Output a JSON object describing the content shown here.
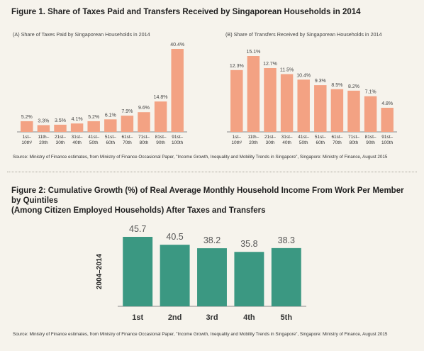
{
  "figure1": {
    "title": "Figure 1. Share of Taxes Paid and Transfers Received by Singaporean Households in 2014",
    "source": "Source: Ministry of Finance estimates, from Ministry of Finance Occasional Paper, \"Income Growth, Inequality and Mobility Trends in Singapore\", Singapore: Ministry of Finance, August 2015"
  },
  "figure2": {
    "title_line1": "Figure 2: Cumulative Growth (%) of Real Average Monthly Household Income From Work Per Member by Quintiles",
    "title_line2": "(Among Citizen Employed Households) After Taxes and Transfers",
    "source": "Source: Ministry of Finance estimates, from Ministry of Finance Occasional Paper, \"Income Growth, Inequality and Mobility Trends in Singapore\", Singapore: Ministry of Finance, August 2015"
  },
  "colors": {
    "fig1_bar": "#f3a283",
    "fig2_bar": "#3b9882",
    "axis": "#8a8a8a"
  },
  "chart_data": [
    {
      "type": "bar",
      "title": "(A) Share of Taxes Paid by Singaporean Households in 2014",
      "categories": [
        [
          "1st–",
          "10th²"
        ],
        [
          "11th–",
          "20th"
        ],
        [
          "21st–",
          "30th"
        ],
        [
          "31st–",
          "40th"
        ],
        [
          "41st–",
          "50th"
        ],
        [
          "51st–",
          "60th"
        ],
        [
          "61st–",
          "70th"
        ],
        [
          "71st–",
          "80th"
        ],
        [
          "81st–",
          "90th"
        ],
        [
          "91st–",
          "100th"
        ]
      ],
      "values": [
        5.2,
        3.3,
        3.5,
        4.1,
        5.2,
        6.1,
        7.9,
        9.6,
        14.8,
        40.4
      ],
      "labels": [
        "5.2%",
        "3.3%",
        "3.5%",
        "4.1%",
        "5.2%",
        "6.1%",
        "7.9%",
        "9.6%",
        "14.8%",
        "40.4%"
      ],
      "ylim": [
        0,
        40.4
      ]
    },
    {
      "type": "bar",
      "title": "(B) Share of Transfers Received by Singaporean Households in 2014",
      "categories": [
        [
          "1st–",
          "10th²"
        ],
        [
          "11th–",
          "20th"
        ],
        [
          "21st–",
          "30th"
        ],
        [
          "31st–",
          "40th"
        ],
        [
          "41st–",
          "50th"
        ],
        [
          "51st–",
          "60th"
        ],
        [
          "61st–",
          "70th"
        ],
        [
          "71st–",
          "80th"
        ],
        [
          "81st–",
          "90th"
        ],
        [
          "91st–",
          "100th"
        ]
      ],
      "values": [
        12.3,
        15.1,
        12.7,
        11.5,
        10.4,
        9.3,
        8.5,
        8.2,
        7.1,
        4.8
      ],
      "labels": [
        "12.3%",
        "15.1%",
        "12.7%",
        "11.5%",
        "10.4%",
        "9.3%",
        "8.5%",
        "8.2%",
        "7.1%",
        "4.8%"
      ],
      "ylim": [
        0,
        15.1
      ]
    },
    {
      "type": "bar",
      "title": "",
      "ylabel": "2004–2014",
      "categories": [
        [
          "1st"
        ],
        [
          "2nd"
        ],
        [
          "3rd"
        ],
        [
          "4th"
        ],
        [
          "5th"
        ]
      ],
      "values": [
        45.7,
        40.5,
        38.2,
        35.8,
        38.3
      ],
      "labels": [
        "45.7",
        "40.5",
        "38.2",
        "35.8",
        "38.3"
      ],
      "ylim": [
        0,
        45.7
      ]
    }
  ]
}
